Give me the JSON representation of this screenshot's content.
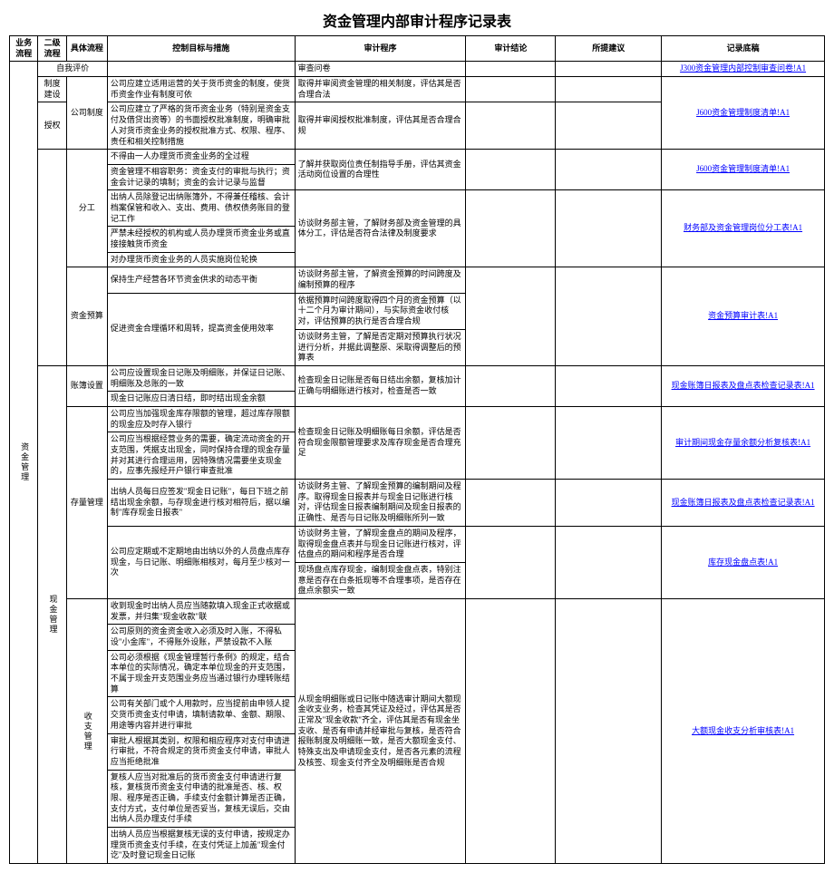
{
  "title": "资金管理内部审计程序记录表",
  "headers": {
    "h1": "业务流程",
    "h2": "二级流程",
    "h3": "具体流程",
    "h4": "控制目标与措施",
    "h5": "审计程序",
    "h6": "审计结论",
    "h7": "所提建议",
    "h8": "记录底稿"
  },
  "l1": "资金管理",
  "l2_cash": "现金管理",
  "rows": {
    "r1": {
      "c3": "自我评价",
      "c5": "审查问卷",
      "c8": "J300资金管理内部控制审查问卷!A1"
    },
    "r2": {
      "c2": "制度建设",
      "c3": "公司制度",
      "c4": "公司应建立适用运营的关于货币资金的制度，使货币资金作业有制度可依",
      "c5": "取得并审阅资金管理的相关制度，评估其是否合理合法",
      "c8": "J600资金管理制度清单!A1"
    },
    "r3": {
      "c2": "授权",
      "c4": "公司应建立了严格的货币资金业务（特别是资金支付及借贷出资等）的书面授权批准制度，明确审批人对货币资金业务的授权批准方式、权限、程序、责任和相关控制措施",
      "c5": "取得并审阅授权批准制度，评估其是否合理合规"
    },
    "r4": {
      "c4": "不得由一人办理货币资金业务的全过程",
      "c5": "了解并获取岗位责任制指导手册，评估其资金活动岗位设置的合理性",
      "c8": "J600资金管理制度清单!A1"
    },
    "r5": {
      "c3": "分工",
      "c4": "资金管理不相容职务：资金支付的审批与执行；资金会计记录的填制；资金的会计记录与监督"
    },
    "r6": {
      "c4": "出纳人员除登记出纳账簿外，不得兼任稽核、会计档案保管和收入、支出、费用、债权债务账目的登记工作",
      "c5": "访谈财务部主管，了解财务部及资金管理的具体分工，评估是否符合法律及制度要求",
      "c8": "财务部及资金管理岗位分工表!A1"
    },
    "r7": {
      "c4": "严禁未经授权的机构或人员办理货币资金业务或直接接触货币资金"
    },
    "r8": {
      "c4": "对办理货币资金业务的人员实施岗位轮换"
    },
    "r9": {
      "c3": "资金预算",
      "c4": "保持生产经营各环节资金供求的动态平衡",
      "c5": "访谈财务部主管，了解资金预算的时间跨度及编制预算的程序"
    },
    "r10": {
      "c4": "促进资金合理循环和周转，提高资金使用效率",
      "c5": "依据预算时间跨度取得四个月的资金预算（以十二个月为审计期间），与实际资金收付核对，评估预算的执行是否合理合规",
      "c8": "资金预算审计表!A1"
    },
    "r11": {
      "c5": "访谈财务主管，了解是否定期对预算执行状况进行分析，并据此调整原、采取得调整后的预算表"
    },
    "r12": {
      "c3": "账簿设置",
      "c4": "公司应设置现金日记账及明细账，并保证日记账、明细账及总账的一致",
      "c5": "检查现金日记账是否每日结出余额，复核加计正确与明细账进行核对，检查是否一致",
      "c8": "现金账簿日报表及盘点表检查记录表!A1"
    },
    "r13": {
      "c4": "现金日记账应日清日结，即时结出现金余额"
    },
    "r14": {
      "c4": "公司应当加强现金库存限额的管理，超过库存限额的现金应及时存入银行",
      "c5": "检查现金日记账及明细账每日余额，评估是否符合现金限额管理要求及库存现金是否合理充足",
      "c8": "审计期间现金存量余额分析复核表!A1"
    },
    "r15": {
      "c3": "存量管理",
      "c4": "公司应当根据经营业务的需要，确定流动资金的开支范围，凭据支出现金，同时保持合理的现金存量并对其进行合理运用，因特殊情况需要坐支现金的，应事先报经开户银行审查批准"
    },
    "r16": {
      "c4": "出纳人员每日应签发\"现金日记账\"，每日下班之前结出现金余额，与存现金进行核对相符后，据以编制\"库存现金日报表\"",
      "c5": "访谈财务主管、了解现金预算的编制期间及程序。取得现金日报表并与现金日记账进行核对，评估现金日报表编制期间及现金日报表的正确性、是否与日记账及明细账所列一致",
      "c8": "现金账簿日报表及盘点表检查记录表!A1"
    },
    "r17": {
      "c4": "公司应定期或不定期地由出纳以外的人员盘点库存现金，与日记账、明细账相核对，每月至少核对一次",
      "c5": "访谈财务主管，了解现金盘点的期间及程序，取得现金盘点表并与现金日记账进行核对，评估盘点的期间和程序是否合理"
    },
    "r18": {
      "c5": "现场盘点库存现金，编制现金盘点表，特别注意是否存在白条抵现等不合理事项，是否存在盘点余额实一致",
      "c8": "库存现金盘点表!A1"
    },
    "r19": {
      "c3": "收支管理",
      "c4": "收到现金时出纳人员应当随款填入现金正式收据或发票，并归集\"现金收款\"联",
      "c5": "从现金明细账或日记账中随选审计期间大额现金收支业务，检查其凭证及经过，评估其是否正常及\"现金收款\"齐全，评估其是否有现金坐支收、是否有申请并经审批与复核，是否符合报账制度及明细账一致，是否大额现金支付、特殊支出及申请现金支付，是否各元素的流程及核签、现金支付齐全及明细账是否合规",
      "c8": "大额现金收支分析审核表!A1"
    },
    "r20": {
      "c4": "公司原则的资金资金收入必须及时入账，不得私设\"小金库\"，不得账外设账，严禁设款不入账"
    },
    "r21": {
      "c4": "公司必须根据《现金管理暂行条例》的规定，结合本单位的实际情况，确定本单位现金的开支范围，不属于现金开支范围业务应当通过银行办理转账结算"
    },
    "r22": {
      "c4": "公司有关部门或个人用款时，应当提前由申领人提交货币资金支付申请，填制请款单、金额、期限、用途等内容并进行审批"
    },
    "r23": {
      "c4": "审批人根据其类别，权限和相应程序对支付申请进行审批，不符合规定的货币资金支付申请，审批人应当拒绝批准"
    },
    "r24": {
      "c4": "复核人应当对批准后的货币资金支付申请进行复核，复核货币资金支付申请的批准是否、核、权限、程序是否正确，手续支付金额计算是否正确，支付方式，支付单位是否妥当，复核无误后，交由出纳人员办理支付手续"
    },
    "r25": {
      "c4": "出纳人员应当根据复核无误的支付申请，按规定办理货币资金支付手续，在支付凭证上加盖\"现金付讫\"及时登记现金日记账"
    }
  }
}
